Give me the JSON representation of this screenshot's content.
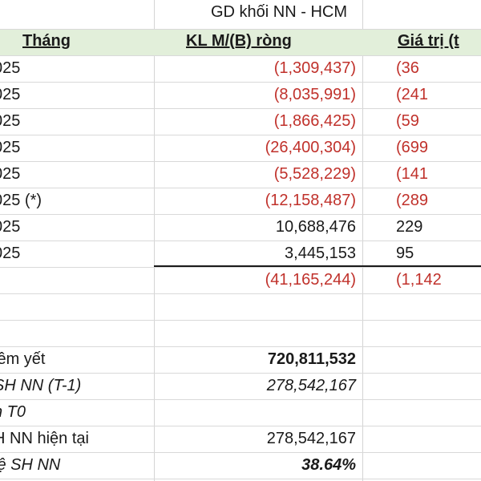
{
  "sheet": {
    "title": "GD khối NN - HCM",
    "headers": {
      "month": "Tháng",
      "kl": "KL M/(B) ròng",
      "gt": "Giá trị (t"
    },
    "rows": [
      {
        "month": "025",
        "kl": "(1,309,437)",
        "gt": "(36",
        "neg": true
      },
      {
        "month": "025",
        "kl": "(8,035,991)",
        "gt": "(241",
        "neg": true
      },
      {
        "month": "025",
        "kl": "(1,866,425)",
        "gt": "(59",
        "neg": true
      },
      {
        "month": "025",
        "kl": "(26,400,304)",
        "gt": "(699",
        "neg": true
      },
      {
        "month": "025",
        "kl": "(5,528,229)",
        "gt": "(141",
        "neg": true
      },
      {
        "month": "025 (*)",
        "kl": "(12,158,487)",
        "gt": "(289",
        "neg": true
      },
      {
        "month": "025",
        "kl": "10,688,476",
        "gt": "229",
        "neg": false
      },
      {
        "month": "025",
        "kl": "3,445,153",
        "gt": "95",
        "neg": false
      }
    ],
    "total": {
      "kl": "(41,165,244)",
      "gt": "(1,142"
    },
    "summary": [
      {
        "label": "iêm yết",
        "value": "720,811,532",
        "bold_value": true,
        "italic": false
      },
      {
        "label": "SH NN (T-1)",
        "value": "278,542,167",
        "bold_value": false,
        "italic": true
      },
      {
        "label": "n T0",
        "value": "",
        "bold_value": false,
        "italic": true
      },
      {
        "label": "H NN hiện tại",
        "value": "278,542,167",
        "bold_value": false,
        "italic": false
      },
      {
        "label": "lệ SH NN",
        "value": "38.64%",
        "bold_value": true,
        "italic": true
      }
    ],
    "colors": {
      "negative": "#c0312b",
      "header_band": "#e2efda",
      "text": "#1a1a1a"
    }
  }
}
